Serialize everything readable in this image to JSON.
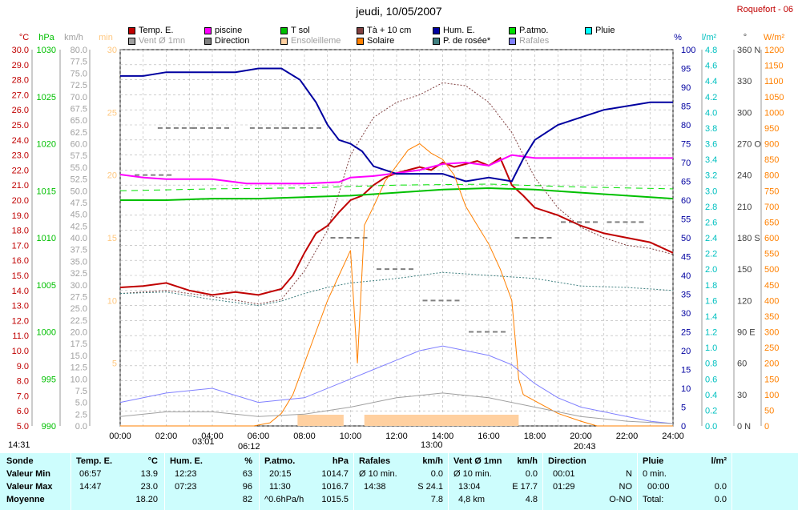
{
  "header": {
    "title": "jeudi, 10/05/2007",
    "station": "Roquefort - 06"
  },
  "legend": [
    {
      "label": "Temp. E.",
      "color": "#c00000",
      "muted": false
    },
    {
      "label": "piscine",
      "color": "#ff00ff",
      "muted": false
    },
    {
      "label": "T sol",
      "color": "#00c000",
      "muted": false
    },
    {
      "label": "Tà + 10 cm",
      "color": "#804040",
      "muted": false
    },
    {
      "label": "Hum. E.",
      "color": "#0000a0",
      "muted": false
    },
    {
      "label": "P.atmo.",
      "color": "#00e000",
      "muted": false
    },
    {
      "label": "Pluie",
      "color": "#00ffff",
      "muted": false
    },
    {
      "label": "Vent Ø 1mn",
      "color": "#a0a0a0",
      "muted": true
    },
    {
      "label": "Direction",
      "color": "#808080",
      "muted": false
    },
    {
      "label": "Ensoleilleme",
      "color": "#ffd0a0",
      "muted": true
    },
    {
      "label": "Solaire",
      "color": "#ff8000",
      "muted": false
    },
    {
      "label": "P. de rosée*",
      "color": "#408080",
      "muted": false
    },
    {
      "label": "Rafales",
      "color": "#8080ff",
      "muted": true
    }
  ],
  "axes": {
    "temp_unit": "°C",
    "hpa_unit": "hPa",
    "kmh_unit": "km/h",
    "min_unit": "min",
    "pct_unit": "%",
    "lm2_unit": "l/m²",
    "deg_unit": "°",
    "wm2_unit": "W/m²",
    "temp_ticks": [
      "30.0",
      "29.0",
      "28.0",
      "27.0",
      "26.0",
      "25.0",
      "24.0",
      "23.0",
      "22.0",
      "21.0",
      "20.0",
      "19.0",
      "18.0",
      "17.0",
      "16.0",
      "15.0",
      "14.0",
      "13.0",
      "12.0",
      "11.0",
      "10.0",
      "9.0",
      "8.0",
      "7.0",
      "6.0",
      "5.0"
    ],
    "hpa_ticks": [
      "1030",
      "1025",
      "1020",
      "1015",
      "1010",
      "1005",
      "1000",
      "995",
      "990"
    ],
    "kmh_ticks": [
      "80.0",
      "77.5",
      "75.0",
      "72.5",
      "70.0",
      "67.5",
      "65.0",
      "62.5",
      "60.0",
      "57.5",
      "55.0",
      "52.5",
      "50.0",
      "47.5",
      "45.0",
      "42.5",
      "40.0",
      "37.5",
      "35.0",
      "32.5",
      "30.0",
      "27.5",
      "25.0",
      "22.5",
      "20.0",
      "17.5",
      "15.0",
      "12.5",
      "10.0",
      "7.5",
      "5.0",
      "2.5",
      "0.0"
    ],
    "min_ticks": [
      "30",
      "25",
      "20",
      "15",
      "10",
      "5"
    ],
    "pct_ticks": [
      "100",
      "95",
      "90",
      "85",
      "80",
      "75",
      "70",
      "65",
      "60",
      "55",
      "50",
      "45",
      "40",
      "35",
      "30",
      "25",
      "20",
      "15",
      "10",
      "5",
      "0"
    ],
    "lm2_ticks": [
      "4.8",
      "4.6",
      "4.4",
      "4.2",
      "4.0",
      "3.8",
      "3.6",
      "3.4",
      "3.2",
      "3.0",
      "2.8",
      "2.6",
      "2.4",
      "2.2",
      "2.0",
      "1.8",
      "1.6",
      "1.4",
      "1.2",
      "1.0",
      "0.8",
      "0.6",
      "0.4",
      "0.2",
      "0.0"
    ],
    "deg_ticks": [
      "360 N",
      "330",
      "300",
      "270 O",
      "240",
      "210",
      "180 S",
      "150",
      "120",
      "90 E",
      "60",
      "30",
      "0 N"
    ],
    "wm2_ticks": [
      "1200",
      "1150",
      "1100",
      "1050",
      "1000",
      "950",
      "900",
      "850",
      "800",
      "750",
      "700",
      "650",
      "600",
      "550",
      "500",
      "450",
      "400",
      "350",
      "300",
      "250",
      "200",
      "150",
      "100",
      "50",
      "0"
    ],
    "time_ticks": [
      "00:00",
      "02:00",
      "04:00",
      "06:00",
      "08:00",
      "10:00",
      "12:00",
      "14:00",
      "16:00",
      "18:00",
      "20:00",
      "22:00",
      "24:00"
    ]
  },
  "markers": {
    "t1": "14:31",
    "t2": "03:01",
    "t3": "06:12",
    "t4": "13:00",
    "t5": "20:43"
  },
  "chart_data": {
    "type": "line",
    "title": "jeudi, 10/05/2007",
    "x_unit": "hours",
    "xlim": [
      0,
      24
    ],
    "ylim_temp": [
      5,
      30
    ],
    "ylim_pct": [
      0,
      100
    ],
    "ylim_wm2": [
      0,
      1200
    ],
    "series": [
      {
        "name": "Temp. E.",
        "color": "#c00000",
        "axis": "temp",
        "x": [
          0,
          1,
          2,
          3,
          4,
          5,
          6,
          7,
          7.5,
          8,
          8.5,
          9,
          9.5,
          10,
          10.5,
          11,
          11.5,
          12,
          12.5,
          13,
          13.5,
          14,
          14.5,
          15,
          15.5,
          16,
          16.5,
          17,
          17.5,
          18,
          19,
          20,
          21,
          22,
          23,
          24
        ],
        "y": [
          14.2,
          14.3,
          14.5,
          14.0,
          13.7,
          13.9,
          13.7,
          14.1,
          15.0,
          16.5,
          17.8,
          18.3,
          19.2,
          20.0,
          20.3,
          21.0,
          21.5,
          21.8,
          22.0,
          22.2,
          22.0,
          22.5,
          22.2,
          22.4,
          22.6,
          22.3,
          22.8,
          21.0,
          20.3,
          19.5,
          19.0,
          18.3,
          17.8,
          17.5,
          17.2,
          16.5
        ]
      },
      {
        "name": "piscine",
        "color": "#ff00ff",
        "axis": "temp",
        "x": [
          0,
          1,
          2,
          4,
          5.5,
          8,
          9.5,
          10,
          11,
          12,
          13,
          14,
          15,
          16,
          17,
          17.5,
          18,
          20,
          22,
          24
        ],
        "y": [
          21.7,
          21.5,
          21.4,
          21.4,
          21.1,
          21.1,
          21.2,
          21.5,
          21.6,
          21.8,
          22.0,
          22.4,
          22.5,
          22.3,
          23.0,
          22.9,
          22.8,
          22.8,
          22.8,
          22.8
        ]
      },
      {
        "name": "T sol",
        "color": "#00c000",
        "axis": "temp",
        "x": [
          0,
          2,
          4,
          6,
          8,
          10,
          12,
          14,
          16,
          18,
          20,
          22,
          24
        ],
        "y": [
          20.0,
          20.0,
          20.1,
          20.1,
          20.2,
          20.3,
          20.5,
          20.7,
          20.8,
          20.7,
          20.5,
          20.3,
          20.1
        ]
      },
      {
        "name": "Tà + 10 cm",
        "color": "#804040",
        "axis": "temp",
        "x": [
          0,
          2,
          4,
          6,
          7,
          8,
          9,
          10,
          11,
          12,
          13,
          14,
          15,
          16,
          17,
          18,
          19,
          20,
          21,
          22,
          23,
          24
        ],
        "y": [
          13.8,
          14.0,
          13.6,
          13.1,
          13.4,
          15.3,
          18.0,
          23.0,
          25.5,
          26.5,
          27.0,
          27.8,
          27.6,
          26.5,
          24.5,
          21.5,
          19.5,
          18.2,
          17.5,
          17.0,
          16.8,
          16.4
        ]
      },
      {
        "name": "P. de rosée*",
        "color": "#408080",
        "axis": "temp",
        "x": [
          0,
          2,
          4,
          6,
          7,
          8,
          9,
          10,
          12,
          14,
          16,
          18,
          20,
          22,
          24
        ],
        "y": [
          13.8,
          13.9,
          13.4,
          13.0,
          13.3,
          13.8,
          14.2,
          14.5,
          14.8,
          15.2,
          15.0,
          14.8,
          14.3,
          14.2,
          14.0
        ]
      },
      {
        "name": "Hum. E.",
        "color": "#0000a0",
        "axis": "pct",
        "x": [
          0,
          1,
          2,
          3,
          4,
          5,
          6,
          7,
          7.8,
          8.5,
          9,
          9.5,
          10,
          10.5,
          11,
          12,
          13,
          14,
          15,
          16,
          17,
          17.5,
          18,
          19,
          20,
          21,
          22,
          23,
          24
        ],
        "y": [
          93,
          93,
          94,
          94,
          94,
          94,
          95,
          95,
          92,
          86,
          80,
          76,
          75,
          73,
          69,
          67,
          67,
          67,
          65,
          66,
          65,
          71,
          76,
          80,
          82,
          84,
          85,
          86,
          86
        ]
      },
      {
        "name": "Solaire",
        "color": "#ff8000",
        "axis": "wm2",
        "x": [
          0,
          5.8,
          6.5,
          7,
          7.5,
          8,
          8.5,
          9,
          9.5,
          10,
          10.3,
          10.6,
          11,
          11.5,
          12,
          12.5,
          13,
          13.5,
          14,
          14.5,
          15,
          15.5,
          16,
          16.5,
          17,
          17.3,
          17.5,
          18,
          19,
          20,
          20.7,
          21,
          24
        ],
        "y": [
          0,
          0,
          10,
          40,
          100,
          200,
          300,
          400,
          480,
          560,
          200,
          640,
          700,
          780,
          830,
          880,
          900,
          870,
          850,
          800,
          700,
          640,
          580,
          500,
          400,
          150,
          100,
          80,
          40,
          15,
          0,
          0,
          0
        ]
      },
      {
        "name": "Rafales",
        "color": "#8080ff",
        "axis": "kmh",
        "x": [
          0,
          2,
          4,
          6,
          8,
          10,
          11,
          12,
          13,
          14,
          15,
          16,
          17,
          18,
          19,
          20,
          21,
          22,
          23,
          24
        ],
        "y": [
          5.0,
          7.0,
          8.0,
          5.0,
          6.0,
          10.0,
          12.0,
          14.0,
          16.0,
          17.0,
          16.0,
          15.0,
          13.0,
          9.0,
          6.0,
          4.0,
          3.0,
          2.0,
          1.0,
          0.5
        ]
      },
      {
        "name": "Vent Ø 1mn",
        "color": "#a0a0a0",
        "axis": "kmh",
        "x": [
          0,
          2,
          4,
          6,
          8,
          10,
          12,
          14,
          16,
          18,
          20,
          22,
          24
        ],
        "y": [
          2.0,
          3.0,
          3.0,
          2.0,
          2.5,
          4.0,
          6.0,
          7.0,
          6.0,
          4.0,
          2.0,
          1.0,
          0.5
        ]
      },
      {
        "name": "P.atmo.",
        "color": "#00e000",
        "axis": "hpa",
        "x": [
          0,
          4,
          8,
          12,
          16,
          20,
          24
        ],
        "y": [
          1015.0,
          1015.2,
          1015.3,
          1015.6,
          1015.7,
          1015.4,
          1015.2
        ]
      }
    ],
    "direction_points": [
      {
        "time": 1.5,
        "deg": 240
      },
      {
        "time": 2.5,
        "deg": 285
      },
      {
        "time": 4.0,
        "deg": 285
      },
      {
        "time": 6.5,
        "deg": 285
      },
      {
        "time": 8.0,
        "deg": 285
      },
      {
        "time": 10.0,
        "deg": 180
      },
      {
        "time": 12.0,
        "deg": 150
      },
      {
        "time": 14.0,
        "deg": 120
      },
      {
        "time": 16.0,
        "deg": 90
      },
      {
        "time": 18.0,
        "deg": 180
      },
      {
        "time": 20.0,
        "deg": 195
      },
      {
        "time": 22.0,
        "deg": 195
      }
    ],
    "ensoleillement_intervals": [
      [
        7.7,
        9.7
      ],
      [
        10.6,
        17.3
      ]
    ]
  },
  "table": {
    "headers": {
      "sonde": "Sonde",
      "temp": "Temp. E.",
      "temp_unit": "°C",
      "hum": "Hum. E.",
      "hum_unit": "%",
      "patmo": "P.atmo.",
      "patmo_unit": "hPa",
      "rafales": "Rafales",
      "rafales_unit": "km/h",
      "vent": "Vent Ø 1mn",
      "vent_unit": "km/h",
      "direction": "Direction",
      "pluie": "Pluie",
      "pluie_unit": "l/m²"
    },
    "row_labels": [
      "Valeur Min",
      "Valeur Max",
      "Moyenne"
    ],
    "temp": [
      [
        "06:57",
        "13.9"
      ],
      [
        "14:47",
        "23.0"
      ],
      [
        "",
        "18.20"
      ]
    ],
    "hum": [
      [
        "12:23",
        "63"
      ],
      [
        "07:23",
        "96"
      ],
      [
        "",
        "82"
      ]
    ],
    "patmo": [
      [
        "20:15",
        "1014.7"
      ],
      [
        "11:30",
        "1016.7"
      ],
      [
        "^0.6hPa/h",
        "1015.5"
      ]
    ],
    "rafales": [
      [
        "Ø 10 min.",
        "0.0"
      ],
      [
        "14:38",
        "S 24.1"
      ],
      [
        "",
        "7.8"
      ]
    ],
    "vent": [
      [
        "Ø 10 min.",
        "0.0"
      ],
      [
        "13:04",
        "E 17.7"
      ],
      [
        "4,8 km",
        "4.8"
      ]
    ],
    "direction": [
      [
        "00:01",
        "N"
      ],
      [
        "01:29",
        "NO"
      ],
      [
        "",
        "O-NO"
      ]
    ],
    "pluie": [
      [
        "0 min.",
        ""
      ],
      [
        "00:00",
        "0.0"
      ],
      [
        "Total:",
        "0.0"
      ]
    ]
  }
}
